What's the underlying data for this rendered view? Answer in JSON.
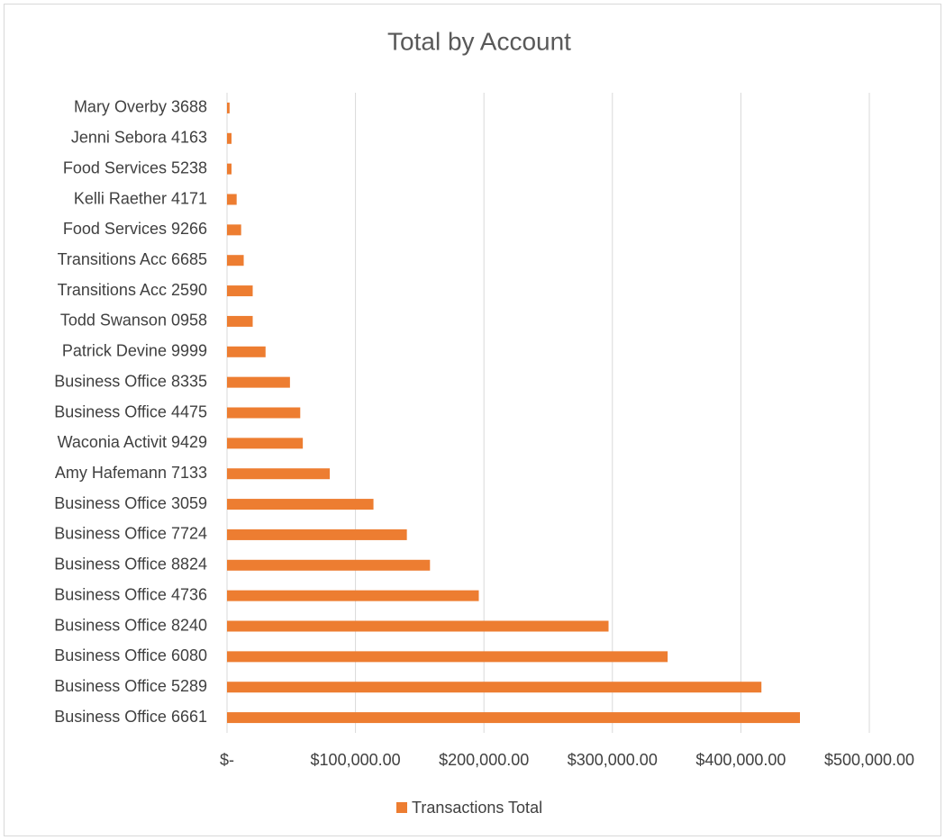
{
  "chart_data": {
    "type": "barh",
    "title": "Total by Account",
    "categories": [
      "Mary Overby 3688",
      "Jenni Sebora 4163",
      "Food Services 5238",
      "Kelli Raether 4171",
      "Food Services 9266",
      "Transitions Acc 6685",
      "Transitions Acc 2590",
      "Todd Swanson 0958",
      "Patrick Devine 9999",
      "Business Office 8335",
      "Business Office 4475",
      "Waconia Activit 9429",
      "Amy Hafemann 7133",
      "Business Office 3059",
      "Business Office 7724",
      "Business Office 8824",
      "Business Office 4736",
      "Business Office 8240",
      "Business Office 6080",
      "Business Office 5289",
      "Business Office 6661"
    ],
    "series": [
      {
        "name": "Transactions Total",
        "color": "#ed7d31",
        "values": [
          2000,
          3500,
          3500,
          7500,
          11000,
          13000,
          20000,
          20000,
          30000,
          49000,
          57000,
          59000,
          80000,
          114000,
          140000,
          158000,
          196000,
          297000,
          343000,
          416000,
          446000
        ]
      }
    ],
    "xlim": [
      0,
      500000
    ],
    "xticks": [
      {
        "value": 0,
        "label": "$-"
      },
      {
        "value": 100000,
        "label": "$100,000.00"
      },
      {
        "value": 200000,
        "label": "$200,000.00"
      },
      {
        "value": 300000,
        "label": "$300,000.00"
      },
      {
        "value": 400000,
        "label": "$400,000.00"
      },
      {
        "value": 500000,
        "label": "$500,000.00"
      }
    ],
    "grid": true,
    "legend": "bottom"
  }
}
